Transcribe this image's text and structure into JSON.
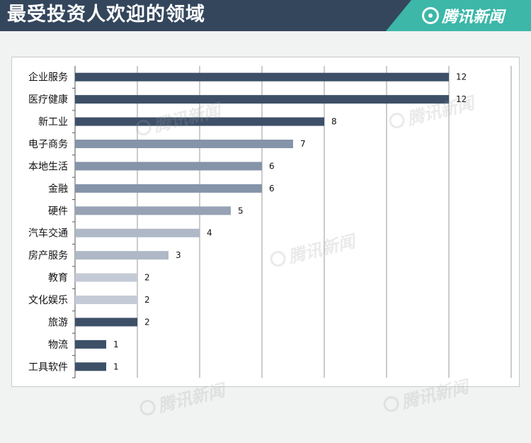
{
  "header": {
    "title": "最受投资人欢迎的领域",
    "brand": "腾讯新闻"
  },
  "watermark_text": "腾讯新闻",
  "colors": {
    "header_bg": "#34465c",
    "brand_bg": "#3cb7a8",
    "bar_dark": "#3d5068",
    "bar_mid": "#8594a8",
    "bar_mid2": "#97a3b4",
    "bar_light": "#aeb8c6",
    "bar_lighter": "#c4cbd6"
  },
  "chart_data": {
    "type": "bar",
    "orientation": "horizontal",
    "title": "最受投资人欢迎的领域",
    "categories": [
      "企业服务",
      "医疗健康",
      "新工业",
      "电子商务",
      "本地生活",
      "金融",
      "硬件",
      "汽车交通",
      "房产服务",
      "教育",
      "文化娱乐",
      "旅游",
      "物流",
      "工具软件"
    ],
    "values": [
      12,
      12,
      8,
      7,
      6,
      6,
      5,
      4,
      3,
      2,
      2,
      2,
      1,
      1
    ],
    "bar_colors": [
      "#3d5068",
      "#3d5068",
      "#3d5068",
      "#8594a8",
      "#8594a8",
      "#8594a8",
      "#97a3b4",
      "#aeb8c6",
      "#aeb8c6",
      "#c4cbd6",
      "#c4cbd6",
      "#3d5068",
      "#3d5068",
      "#3d5068"
    ],
    "xlim": [
      0,
      14
    ],
    "x_tick_step": 2,
    "grid": true,
    "xlabel": "",
    "ylabel": ""
  }
}
